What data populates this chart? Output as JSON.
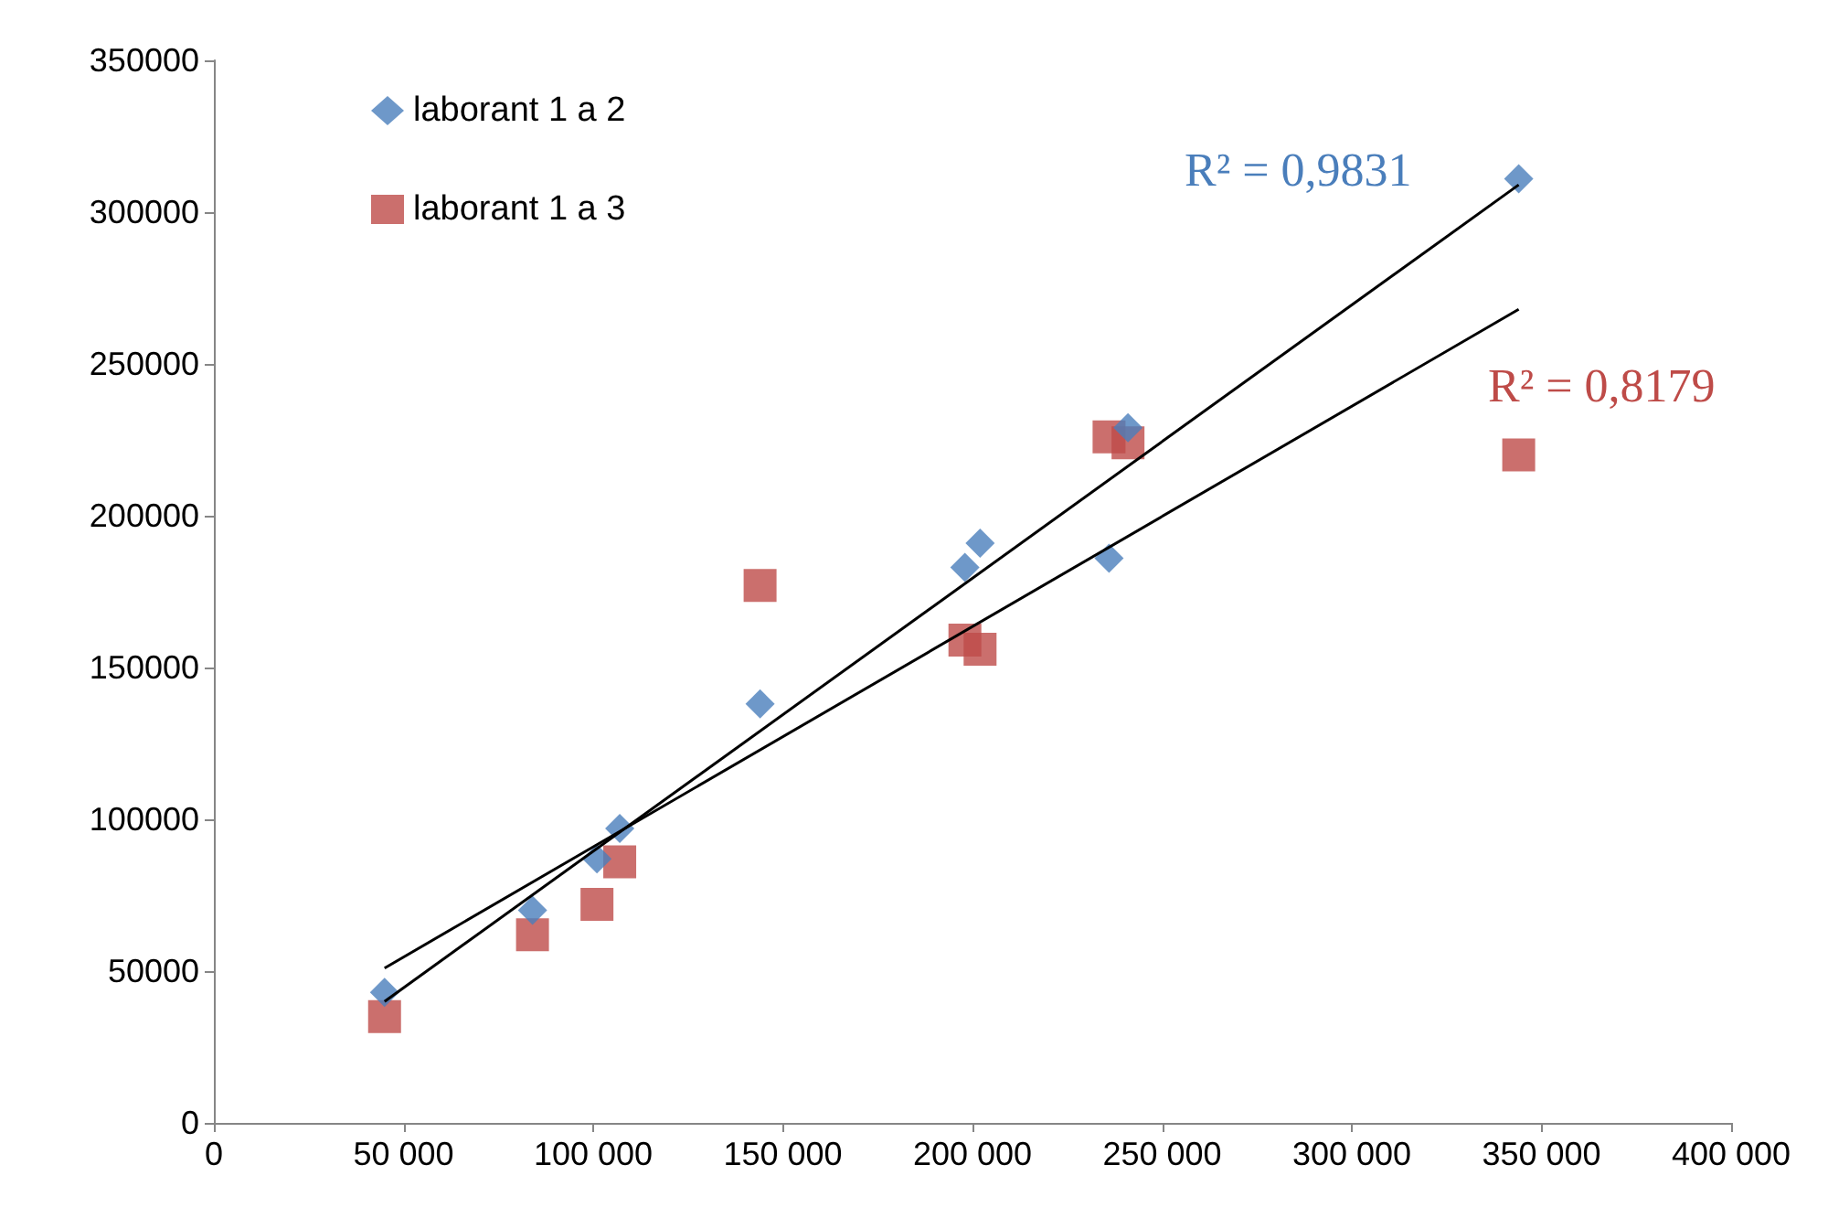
{
  "chart_data": {
    "type": "scatter",
    "xlim": [
      0,
      400000
    ],
    "ylim": [
      0,
      350000
    ],
    "xticks": [
      0,
      {
        "value": 50000,
        "label": "50 000"
      },
      {
        "value": 100000,
        "label": "100 000"
      },
      {
        "value": 150000,
        "label": "150 000"
      },
      {
        "value": 200000,
        "label": "200 000"
      },
      {
        "value": 250000,
        "label": "250 000"
      },
      {
        "value": 300000,
        "label": "300 000"
      },
      {
        "value": 350000,
        "label": "350 000"
      },
      {
        "value": 400000,
        "label": "400 000"
      }
    ],
    "yticks": [
      0,
      50000,
      100000,
      150000,
      200000,
      250000,
      300000,
      350000
    ],
    "grid": false,
    "legend": "top left",
    "annotations": [
      "R² = 0,9831",
      "R² = 0,8179"
    ],
    "series": [
      {
        "name": "laborant 1 a 2",
        "color": "#4a7ebb",
        "marker": "diamond",
        "x": [
          45000,
          84000,
          101000,
          107000,
          144000,
          198000,
          202000,
          236000,
          241000,
          344000
        ],
        "values": [
          43000,
          70000,
          87000,
          97000,
          138000,
          183000,
          191000,
          186000,
          229000,
          311000
        ]
      },
      {
        "name": "laborant 1 a 3",
        "color": "#be4b48",
        "marker": "square",
        "x": [
          45000,
          84000,
          101000,
          107000,
          144000,
          198000,
          202000,
          236000,
          241000,
          344000
        ],
        "values": [
          35000,
          62000,
          72000,
          86000,
          177000,
          159000,
          156000,
          226000,
          224000,
          220000
        ]
      },
      {
        "type": "line",
        "color": "#000000",
        "marker": "none",
        "x": [
          45000,
          344000
        ],
        "values": [
          40000,
          309000
        ]
      },
      {
        "type": "line",
        "color": "#000000",
        "marker": "none",
        "x": [
          45000,
          344000
        ],
        "values": [
          51000,
          268000
        ]
      }
    ]
  }
}
